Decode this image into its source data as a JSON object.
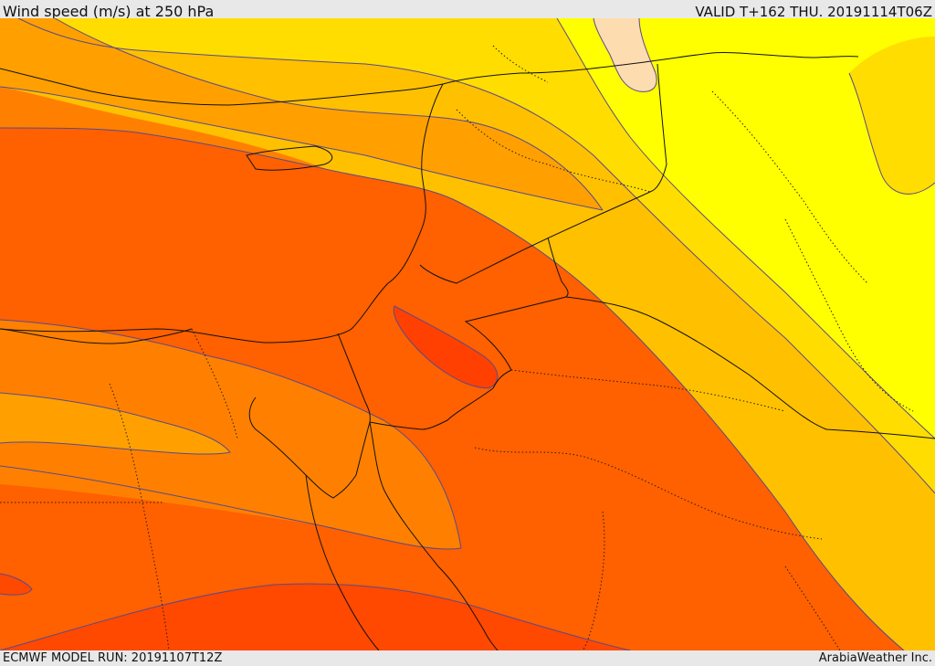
{
  "header": {
    "title": "Wind speed (m/s) at 250 hPa",
    "valid_time": "VALID T+162 THU. 20191114T06Z"
  },
  "footer": {
    "model_run": "ECMWF MODEL RUN: 20191107T12Z",
    "credit": "ArabiaWeather Inc."
  },
  "map": {
    "variable": "wind speed",
    "units": "m/s",
    "pressure_level_hPa": 250,
    "colors": {
      "band_lightest": "#fddcb0",
      "band_yellow": "#ffff00",
      "band_gold": "#ffdd00",
      "band_amber": "#ffc000",
      "band_orange_light": "#ffa000",
      "band_orange": "#ff8000",
      "band_orange_dark": "#ff6000",
      "band_red_orange": "#ff4800",
      "band_red": "#ff3d00",
      "contour_line": "#5a4a8a",
      "border_line": "#111111"
    }
  }
}
